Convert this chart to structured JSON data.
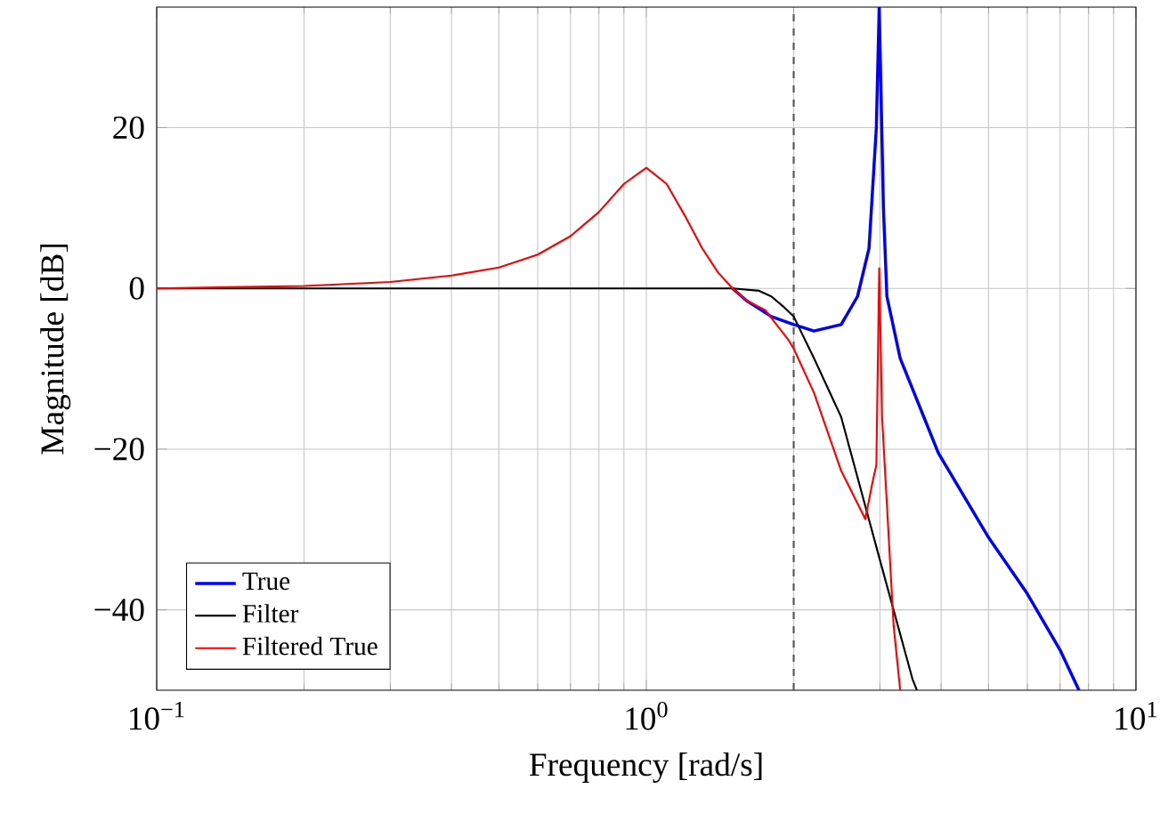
{
  "chart_data": {
    "type": "line",
    "xlabel": "Frequency [rad/s]",
    "ylabel": "Magnitude [dB]",
    "log": "x",
    "xlim": [
      0.1,
      10
    ],
    "ylim": [
      -50,
      35
    ],
    "xticks": [
      {
        "value": 0.1,
        "label": "10$^{−1}$"
      },
      {
        "value": 0.2,
        "label": null
      },
      {
        "value": 0.3,
        "label": null
      },
      {
        "value": 0.4,
        "label": null
      },
      {
        "value": 0.5,
        "label": null
      },
      {
        "value": 0.6,
        "label": null
      },
      {
        "value": 0.7,
        "label": null
      },
      {
        "value": 0.8,
        "label": null
      },
      {
        "value": 0.9,
        "label": null
      },
      {
        "value": 1,
        "label": "10$^{0}$"
      },
      {
        "value": 2,
        "label": null
      },
      {
        "value": 3,
        "label": null
      },
      {
        "value": 4,
        "label": null
      },
      {
        "value": 5,
        "label": null
      },
      {
        "value": 6,
        "label": null
      },
      {
        "value": 7,
        "label": null
      },
      {
        "value": 8,
        "label": null
      },
      {
        "value": 9,
        "label": null
      },
      {
        "value": 10,
        "label": "10$^{1}$"
      }
    ],
    "yticks": [
      {
        "value": -40,
        "label": "−40"
      },
      {
        "value": -20,
        "label": "−20"
      },
      {
        "value": 0,
        "label": "0"
      },
      {
        "value": 20,
        "label": "20"
      }
    ],
    "grid": true,
    "legend": "bottom left",
    "ref_lines": [
      {
        "axis": "x",
        "value": 2,
        "color": "#555555",
        "line_style": "dashed"
      }
    ],
    "series": [
      {
        "name": "True",
        "color": "#0000ff",
        "x": [
          1.5,
          1.6,
          1.8,
          2.0,
          2.2,
          2.5,
          2.7,
          2.85,
          2.95,
          2.99,
          3.05,
          3.1,
          3.3,
          3.95,
          5.0,
          6.0,
          7.0,
          7.65
        ],
        "values": [
          0,
          -1.5,
          -3.5,
          -4.5,
          -5.3,
          -4.5,
          -1,
          5,
          20,
          35,
          10,
          -1,
          -8.7,
          -20.5,
          -31,
          -38,
          -45,
          -50
        ]
      },
      {
        "name": "Filter",
        "color": "#000000",
        "x": [
          0.1,
          0.5,
          1.0,
          1.5,
          1.7,
          1.8,
          1.9,
          2.0,
          2.2,
          2.5,
          3.0,
          3.5,
          3.57
        ],
        "values": [
          0,
          0,
          0,
          0,
          -0.3,
          -1,
          -2.2,
          -3.5,
          -8.7,
          -16,
          -33.8,
          -48.7,
          -50
        ]
      },
      {
        "name": "Filtered True",
        "color": "#ff0000",
        "x": [
          0.1,
          0.2,
          0.3,
          0.4,
          0.5,
          0.6,
          0.7,
          0.8,
          0.9,
          1.0,
          1.1,
          1.2,
          1.3,
          1.4,
          1.5,
          1.6,
          1.75,
          1.95,
          2.0,
          2.2,
          2.5,
          2.8,
          2.9,
          2.95,
          2.99,
          3.03,
          3.2,
          3.3
        ],
        "values": [
          0,
          0.3,
          0.8,
          1.6,
          2.6,
          4.2,
          6.5,
          9.5,
          13,
          15,
          13,
          9,
          5,
          2,
          0,
          -1.5,
          -2.7,
          -6.4,
          -7.5,
          -13,
          -22.7,
          -28.7,
          -24,
          -22,
          2.5,
          -16,
          -42,
          -50
        ]
      }
    ]
  }
}
